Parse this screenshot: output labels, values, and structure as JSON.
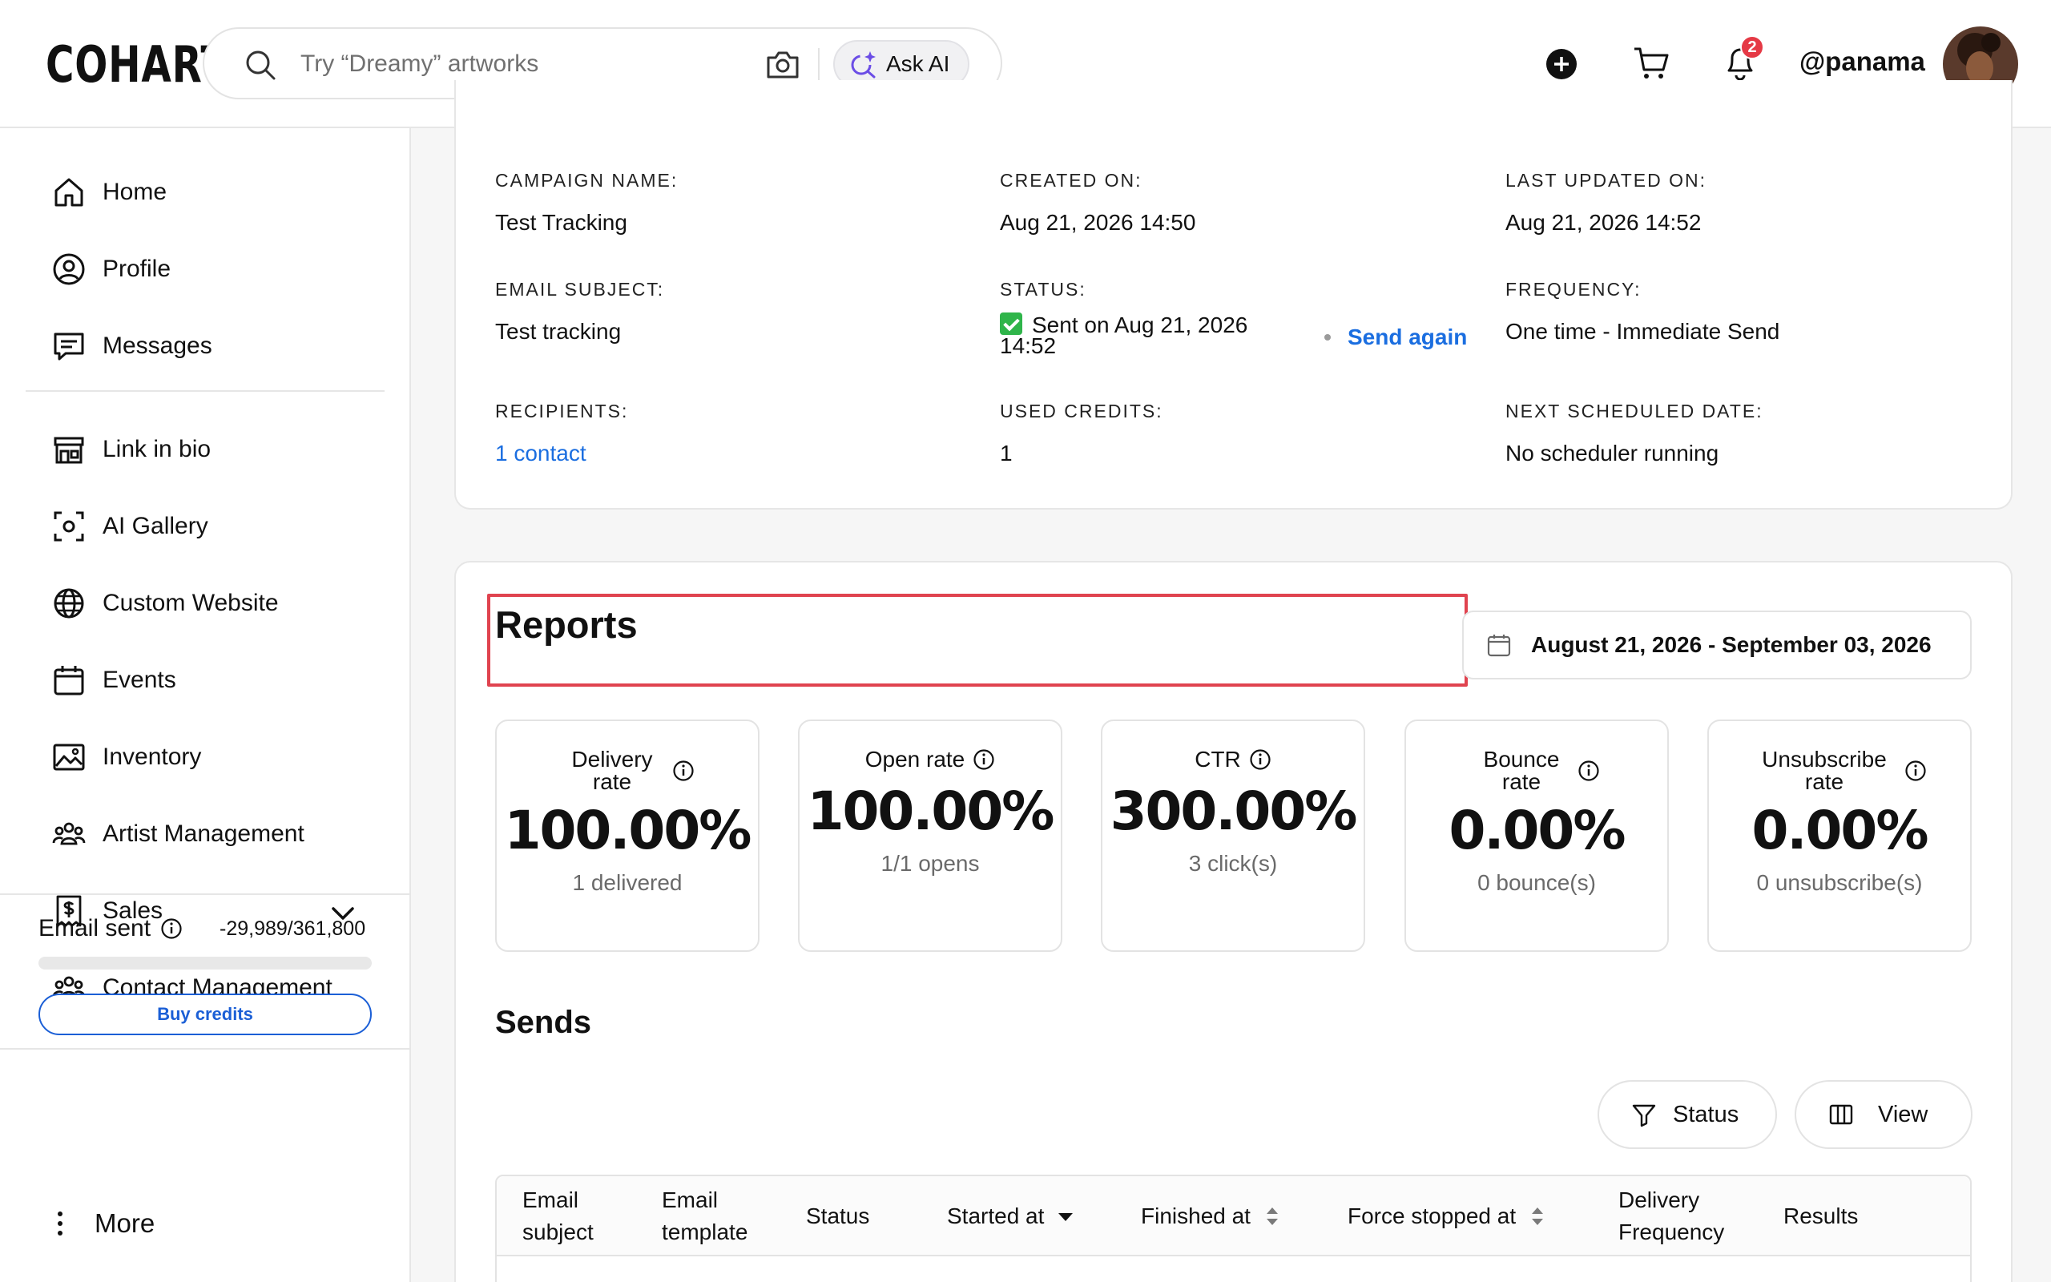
{
  "app": {
    "logo": "COHART"
  },
  "header": {
    "search_placeholder": "Try “Dreamy” artworks",
    "ask_ai_label": "Ask AI",
    "notification_count": "2",
    "username": "@panama"
  },
  "sidebar": {
    "items": [
      {
        "label": "Home",
        "icon": "home-icon"
      },
      {
        "label": "Profile",
        "icon": "profile-icon"
      },
      {
        "label": "Messages",
        "icon": "messages-icon"
      },
      {
        "label": "Link in bio",
        "icon": "storefront-icon"
      },
      {
        "label": "AI Gallery",
        "icon": "scan-icon"
      },
      {
        "label": "Custom Website",
        "icon": "globe-icon"
      },
      {
        "label": "Events",
        "icon": "calendar-icon"
      },
      {
        "label": "Inventory",
        "icon": "image-icon"
      },
      {
        "label": "Artist Management",
        "icon": "people-icon"
      },
      {
        "label": "Sales",
        "icon": "dollar-doc-icon"
      },
      {
        "label": "Contact Management",
        "icon": "people-icon"
      }
    ],
    "email_sent_label": "Email sent",
    "email_sent_count": "-29,989/361,800",
    "buy_credits_label": "Buy credits",
    "more_label": "More"
  },
  "campaign": {
    "campaign_name_label": "CAMPAIGN NAME:",
    "campaign_name": "Test Tracking",
    "created_on_label": "CREATED ON:",
    "created_on": "Aug 21, 2026 14:50",
    "last_updated_label": "LAST UPDATED ON:",
    "last_updated": "Aug 21, 2026 14:52",
    "email_subject_label": "EMAIL SUBJECT:",
    "email_subject": "Test tracking",
    "status_label": "STATUS:",
    "status_value": "Sent on Aug 21, 2026 14:52",
    "send_again_label": "Send again",
    "frequency_label": "FREQUENCY:",
    "frequency": "One time - Immediate Send",
    "recipients_label": "RECIPIENTS:",
    "recipients": "1 contact",
    "used_credits_label": "USED CREDITS:",
    "used_credits": "1",
    "next_scheduled_label": "NEXT SCHEDULED DATE:",
    "next_scheduled": "No scheduler running"
  },
  "reports": {
    "title": "Reports",
    "date_range": "August 21, 2026 - September 03, 2026",
    "stats": [
      {
        "label": "Delivery rate",
        "value": "100.00%",
        "sub": "1 delivered"
      },
      {
        "label": "Open rate",
        "value": "100.00%",
        "sub": "1/1 opens"
      },
      {
        "label": "CTR",
        "value": "300.00%",
        "sub": "3 click(s)"
      },
      {
        "label": "Bounce rate",
        "value": "0.00%",
        "sub": "0 bounce(s)"
      },
      {
        "label": "Unsubscribe rate",
        "value": "0.00%",
        "sub": "0 unsubscribe(s)"
      }
    ]
  },
  "sends": {
    "title": "Sends",
    "status_button": "Status",
    "view_button": "View",
    "columns": [
      "Email subject",
      "Email template",
      "Status",
      "Started at",
      "Finished at",
      "Force stopped at",
      "Delivery Frequency",
      "Results"
    ]
  },
  "colors": {
    "accent_blue": "#1b6ee0",
    "highlight_red": "#e0434f",
    "badge_red": "#e53945",
    "status_green": "#2fb54a"
  }
}
